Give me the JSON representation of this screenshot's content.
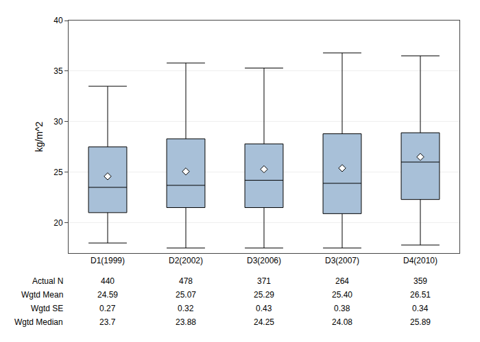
{
  "chart_data": {
    "type": "box",
    "ylabel": "kg/m^2",
    "categories": [
      "D1(1999)",
      "D2(2002)",
      "D3(2006)",
      "D3(2007)",
      "D4(2010)"
    ],
    "whisker_low": [
      18.0,
      17.5,
      17.5,
      17.5,
      17.8
    ],
    "q1": [
      21.0,
      21.5,
      21.5,
      20.9,
      22.3
    ],
    "median": [
      23.5,
      23.7,
      24.2,
      23.9,
      26.0
    ],
    "q3": [
      27.5,
      28.3,
      27.8,
      28.8,
      28.9
    ],
    "whisker_high": [
      33.5,
      35.8,
      35.3,
      36.8,
      36.5
    ],
    "mean": [
      24.59,
      25.07,
      25.29,
      25.4,
      26.51
    ],
    "color": "#a8c0d8",
    "marker": "diamond",
    "ylim": [
      17,
      40
    ],
    "yticks": [
      20,
      25,
      30,
      35,
      40
    ],
    "grid": true,
    "table": {
      "rows": [
        "Actual N",
        "Wgtd Mean",
        "Wgtd SE",
        "Wgtd Median"
      ],
      "cells": [
        [
          "440",
          "478",
          "371",
          "264",
          "359"
        ],
        [
          "24.59",
          "25.07",
          "25.29",
          "25.40",
          "26.51"
        ],
        [
          "0.27",
          "0.32",
          "0.43",
          "0.38",
          "0.34"
        ],
        [
          "23.7",
          "23.88",
          "24.25",
          "24.08",
          "25.89"
        ]
      ]
    }
  }
}
